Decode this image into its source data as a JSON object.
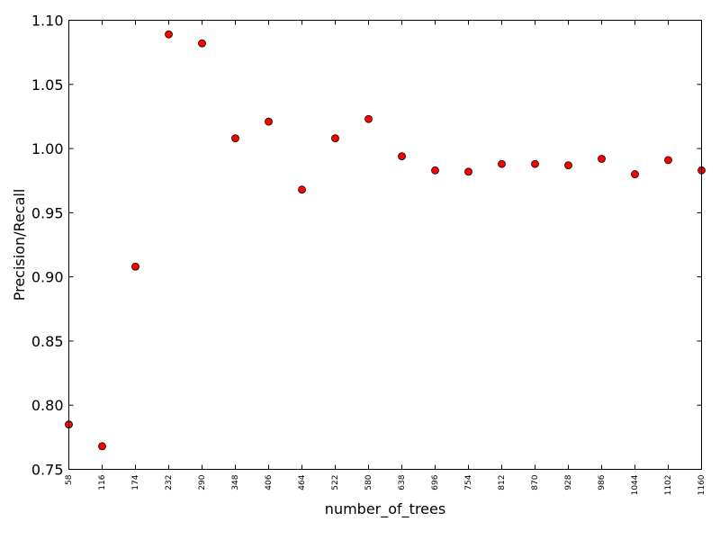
{
  "chart_data": {
    "type": "scatter",
    "title": "",
    "xlabel": "number_of_trees",
    "ylabel": "Precision/Recall",
    "x": [
      58,
      116,
      174,
      232,
      290,
      348,
      406,
      464,
      522,
      580,
      638,
      696,
      754,
      812,
      870,
      928,
      986,
      1044,
      1102,
      1160
    ],
    "x_tick_labels": [
      "58",
      "116",
      "174",
      "232",
      "290",
      "348",
      "406",
      "464",
      "522",
      "580",
      "638",
      "696",
      "754",
      "812",
      "870",
      "928",
      "986",
      "1044",
      "1102",
      "1160"
    ],
    "y": [
      0.785,
      0.768,
      0.908,
      1.089,
      1.082,
      1.008,
      1.021,
      0.968,
      1.008,
      1.023,
      0.994,
      0.983,
      0.982,
      0.988,
      0.988,
      0.987,
      0.992,
      0.98,
      0.991,
      0.983
    ],
    "y_ticks": [
      0.75,
      0.8,
      0.85,
      0.9,
      0.95,
      1.0,
      1.05,
      1.1
    ],
    "y_tick_labels": [
      "0.75",
      "0.80",
      "0.85",
      "0.90",
      "0.95",
      "1.00",
      "1.05",
      "1.10"
    ],
    "xlim": [
      58,
      1160
    ],
    "ylim": [
      0.75,
      1.1
    ],
    "grid": false,
    "marker_color": "#ff0000",
    "marker_edge_color": "#000000"
  }
}
